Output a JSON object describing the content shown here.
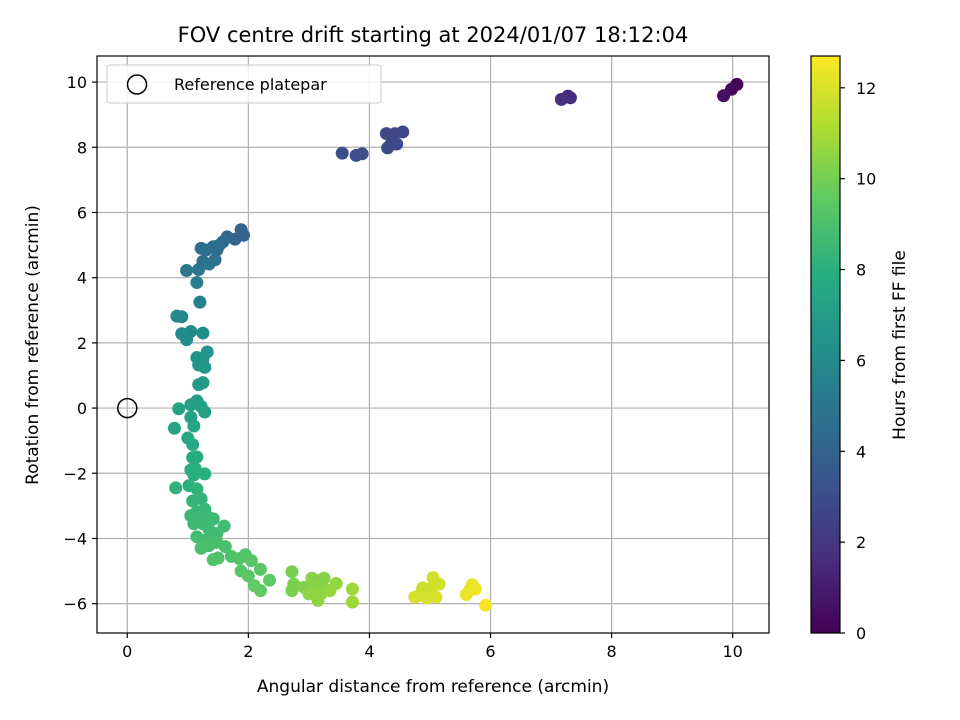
{
  "chart_data": {
    "type": "scatter",
    "title": "FOV centre drift starting at 2024/01/07 18:12:04",
    "xlabel": "Angular distance from reference (arcmin)",
    "ylabel": "Rotation from reference (arcmin)",
    "xlim": [
      -0.5,
      10.6
    ],
    "ylim": [
      -6.9,
      10.8
    ],
    "xticks": [
      0,
      2,
      4,
      6,
      8,
      10
    ],
    "yticks": [
      -6,
      -4,
      -2,
      0,
      2,
      4,
      6,
      8,
      10
    ],
    "grid": true,
    "legend": {
      "placement": "top-left",
      "entries": [
        "Reference platepar"
      ]
    },
    "reference_point": {
      "name": "Reference platepar",
      "x": 0,
      "y": 0
    },
    "colorbar": {
      "label": "Hours from first FF file",
      "colormap": "viridis",
      "range": [
        0,
        12.7
      ],
      "ticks": [
        0,
        2,
        4,
        6,
        8,
        10,
        12
      ]
    },
    "series": [
      {
        "points": [
          {
            "x": 10.07,
            "y": 9.93,
            "h": 0.1
          },
          {
            "x": 9.98,
            "y": 9.78,
            "h": 0.3
          },
          {
            "x": 9.85,
            "y": 9.58,
            "h": 0.5
          },
          {
            "x": 7.28,
            "y": 9.57,
            "h": 1.5
          },
          {
            "x": 7.32,
            "y": 9.52,
            "h": 1.6
          },
          {
            "x": 7.17,
            "y": 9.47,
            "h": 1.7
          },
          {
            "x": 4.55,
            "y": 8.47,
            "h": 2.6
          },
          {
            "x": 4.42,
            "y": 8.42,
            "h": 2.7
          },
          {
            "x": 4.28,
            "y": 8.42,
            "h": 2.7
          },
          {
            "x": 4.45,
            "y": 8.1,
            "h": 2.8
          },
          {
            "x": 4.35,
            "y": 8.08,
            "h": 2.8
          },
          {
            "x": 4.3,
            "y": 7.98,
            "h": 2.9
          },
          {
            "x": 3.55,
            "y": 7.82,
            "h": 3.0
          },
          {
            "x": 3.78,
            "y": 7.75,
            "h": 3.1
          },
          {
            "x": 3.88,
            "y": 7.8,
            "h": 3.1
          },
          {
            "x": 1.92,
            "y": 5.3,
            "h": 4.0
          },
          {
            "x": 1.88,
            "y": 5.47,
            "h": 4.0
          },
          {
            "x": 1.78,
            "y": 5.18,
            "h": 4.1
          },
          {
            "x": 1.65,
            "y": 5.25,
            "h": 4.2
          },
          {
            "x": 1.58,
            "y": 5.1,
            "h": 4.3
          },
          {
            "x": 1.52,
            "y": 5.0,
            "h": 4.4
          },
          {
            "x": 1.48,
            "y": 4.85,
            "h": 4.5
          },
          {
            "x": 1.42,
            "y": 4.95,
            "h": 4.5
          },
          {
            "x": 1.3,
            "y": 4.85,
            "h": 4.6
          },
          {
            "x": 1.22,
            "y": 4.9,
            "h": 4.6
          },
          {
            "x": 1.45,
            "y": 4.55,
            "h": 4.7
          },
          {
            "x": 1.35,
            "y": 4.42,
            "h": 4.8
          },
          {
            "x": 1.25,
            "y": 4.5,
            "h": 4.8
          },
          {
            "x": 1.18,
            "y": 4.25,
            "h": 4.9
          },
          {
            "x": 0.98,
            "y": 4.22,
            "h": 5.0
          },
          {
            "x": 1.15,
            "y": 3.85,
            "h": 5.2
          },
          {
            "x": 1.2,
            "y": 3.25,
            "h": 5.5
          },
          {
            "x": 0.9,
            "y": 2.8,
            "h": 5.8
          },
          {
            "x": 0.82,
            "y": 2.82,
            "h": 5.9
          },
          {
            "x": 1.05,
            "y": 2.35,
            "h": 6.0
          },
          {
            "x": 0.9,
            "y": 2.28,
            "h": 6.1
          },
          {
            "x": 0.98,
            "y": 2.1,
            "h": 6.1
          },
          {
            "x": 1.25,
            "y": 2.3,
            "h": 6.2
          },
          {
            "x": 1.32,
            "y": 1.72,
            "h": 6.4
          },
          {
            "x": 1.15,
            "y": 1.55,
            "h": 6.5
          },
          {
            "x": 1.25,
            "y": 1.5,
            "h": 6.5
          },
          {
            "x": 1.18,
            "y": 1.32,
            "h": 6.6
          },
          {
            "x": 1.28,
            "y": 1.25,
            "h": 6.6
          },
          {
            "x": 1.25,
            "y": 0.78,
            "h": 6.8
          },
          {
            "x": 1.18,
            "y": 0.72,
            "h": 6.8
          },
          {
            "x": 1.15,
            "y": 0.22,
            "h": 7.0
          },
          {
            "x": 1.22,
            "y": 0.05,
            "h": 7.1
          },
          {
            "x": 1.05,
            "y": 0.1,
            "h": 7.1
          },
          {
            "x": 0.85,
            "y": -0.02,
            "h": 7.2
          },
          {
            "x": 1.28,
            "y": -0.12,
            "h": 7.2
          },
          {
            "x": 1.05,
            "y": -0.28,
            "h": 7.3
          },
          {
            "x": 1.1,
            "y": -0.55,
            "h": 7.4
          },
          {
            "x": 0.78,
            "y": -0.62,
            "h": 7.4
          },
          {
            "x": 1.0,
            "y": -0.92,
            "h": 7.6
          },
          {
            "x": 1.08,
            "y": -1.12,
            "h": 7.6
          },
          {
            "x": 1.15,
            "y": -1.5,
            "h": 7.8
          },
          {
            "x": 1.08,
            "y": -1.52,
            "h": 7.8
          },
          {
            "x": 1.12,
            "y": -1.85,
            "h": 7.9
          },
          {
            "x": 1.05,
            "y": -1.9,
            "h": 8.0
          },
          {
            "x": 1.28,
            "y": -2.02,
            "h": 8.0
          },
          {
            "x": 1.1,
            "y": -2.05,
            "h": 8.0
          },
          {
            "x": 1.02,
            "y": -2.38,
            "h": 8.1
          },
          {
            "x": 0.8,
            "y": -2.45,
            "h": 8.2
          },
          {
            "x": 1.15,
            "y": -2.48,
            "h": 8.2
          },
          {
            "x": 1.22,
            "y": -2.78,
            "h": 8.3
          },
          {
            "x": 1.08,
            "y": -2.85,
            "h": 8.3
          },
          {
            "x": 1.28,
            "y": -3.1,
            "h": 8.4
          },
          {
            "x": 1.15,
            "y": -3.18,
            "h": 8.4
          },
          {
            "x": 1.05,
            "y": -3.3,
            "h": 8.5
          },
          {
            "x": 1.2,
            "y": -3.35,
            "h": 8.5
          },
          {
            "x": 1.32,
            "y": -3.32,
            "h": 8.5
          },
          {
            "x": 1.42,
            "y": -3.4,
            "h": 8.6
          },
          {
            "x": 1.1,
            "y": -3.55,
            "h": 8.6
          },
          {
            "x": 1.25,
            "y": -3.55,
            "h": 8.6
          },
          {
            "x": 1.6,
            "y": -3.62,
            "h": 8.7
          },
          {
            "x": 1.35,
            "y": -3.72,
            "h": 8.7
          },
          {
            "x": 1.48,
            "y": -3.85,
            "h": 8.7
          },
          {
            "x": 1.15,
            "y": -3.95,
            "h": 8.8
          },
          {
            "x": 1.3,
            "y": -4.05,
            "h": 8.8
          },
          {
            "x": 1.48,
            "y": -4.12,
            "h": 8.9
          },
          {
            "x": 1.22,
            "y": -4.3,
            "h": 8.9
          },
          {
            "x": 1.35,
            "y": -4.22,
            "h": 8.9
          },
          {
            "x": 1.62,
            "y": -4.25,
            "h": 9.0
          },
          {
            "x": 1.5,
            "y": -4.6,
            "h": 9.1
          },
          {
            "x": 1.42,
            "y": -4.65,
            "h": 9.1
          },
          {
            "x": 1.72,
            "y": -4.55,
            "h": 9.1
          },
          {
            "x": 1.85,
            "y": -4.62,
            "h": 9.2
          },
          {
            "x": 1.95,
            "y": -4.5,
            "h": 9.2
          },
          {
            "x": 2.05,
            "y": -4.68,
            "h": 9.3
          },
          {
            "x": 1.88,
            "y": -5.0,
            "h": 9.3
          },
          {
            "x": 2.0,
            "y": -5.15,
            "h": 9.4
          },
          {
            "x": 2.2,
            "y": -4.95,
            "h": 9.4
          },
          {
            "x": 2.35,
            "y": -5.28,
            "h": 9.5
          },
          {
            "x": 2.1,
            "y": -5.45,
            "h": 9.6
          },
          {
            "x": 2.2,
            "y": -5.6,
            "h": 9.6
          },
          {
            "x": 2.72,
            "y": -5.02,
            "h": 10.0
          },
          {
            "x": 2.75,
            "y": -5.4,
            "h": 10.1
          },
          {
            "x": 2.72,
            "y": -5.6,
            "h": 10.1
          },
          {
            "x": 2.92,
            "y": -5.5,
            "h": 10.2
          },
          {
            "x": 3.05,
            "y": -5.22,
            "h": 10.3
          },
          {
            "x": 3.15,
            "y": -5.28,
            "h": 10.3
          },
          {
            "x": 3.25,
            "y": -5.22,
            "h": 10.3
          },
          {
            "x": 3.1,
            "y": -5.5,
            "h": 10.4
          },
          {
            "x": 3.25,
            "y": -5.55,
            "h": 10.4
          },
          {
            "x": 3.0,
            "y": -5.7,
            "h": 10.5
          },
          {
            "x": 3.2,
            "y": -5.7,
            "h": 10.5
          },
          {
            "x": 3.15,
            "y": -5.9,
            "h": 10.5
          },
          {
            "x": 3.35,
            "y": -5.6,
            "h": 10.6
          },
          {
            "x": 3.45,
            "y": -5.38,
            "h": 10.6
          },
          {
            "x": 3.72,
            "y": -5.55,
            "h": 10.8
          },
          {
            "x": 3.72,
            "y": -5.95,
            "h": 10.8
          },
          {
            "x": 4.82,
            "y": -5.75,
            "h": 11.6
          },
          {
            "x": 4.88,
            "y": -5.52,
            "h": 11.7
          },
          {
            "x": 5.0,
            "y": -5.55,
            "h": 11.7
          },
          {
            "x": 5.05,
            "y": -5.2,
            "h": 11.8
          },
          {
            "x": 5.15,
            "y": -5.4,
            "h": 11.8
          },
          {
            "x": 5.1,
            "y": -5.8,
            "h": 11.9
          },
          {
            "x": 4.95,
            "y": -5.82,
            "h": 11.9
          },
          {
            "x": 4.75,
            "y": -5.8,
            "h": 11.9
          },
          {
            "x": 5.65,
            "y": -5.6,
            "h": 12.2
          },
          {
            "x": 5.7,
            "y": -5.42,
            "h": 12.3
          },
          {
            "x": 5.6,
            "y": -5.72,
            "h": 12.3
          },
          {
            "x": 5.75,
            "y": -5.55,
            "h": 12.4
          },
          {
            "x": 5.92,
            "y": -6.05,
            "h": 12.6
          }
        ]
      }
    ]
  }
}
